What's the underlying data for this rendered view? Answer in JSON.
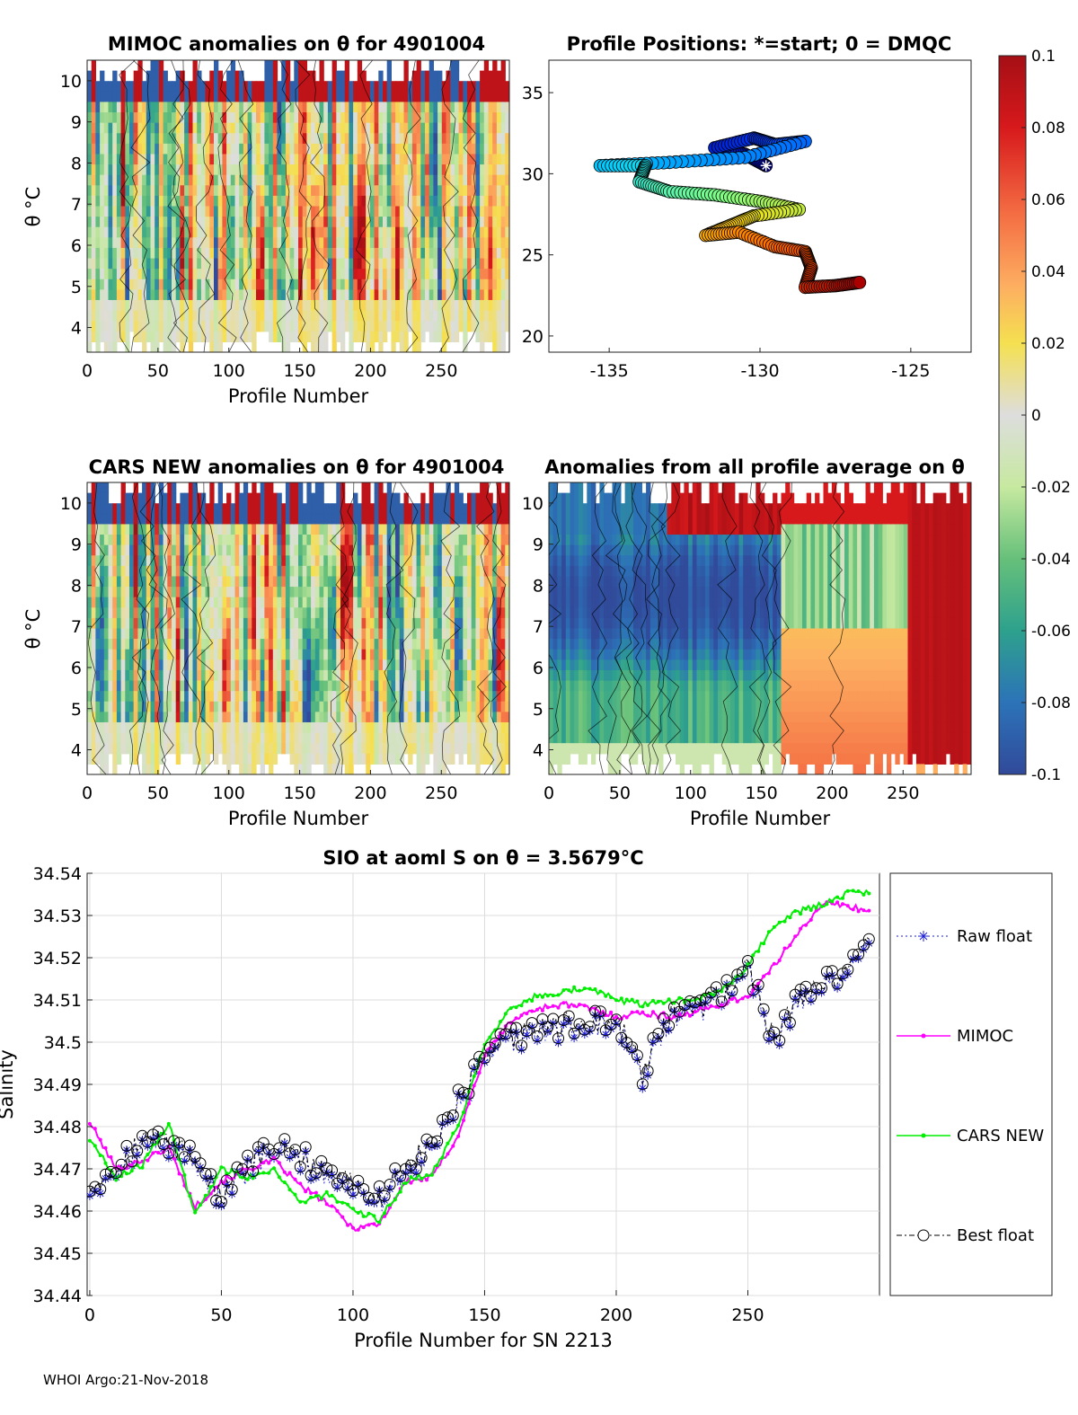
{
  "panels": {
    "mimoc": {
      "title": "MIMOC anomalies on θ  for 4901004",
      "ylabel": "θ °C",
      "xlabel": "Profile Number",
      "xticks": [
        0,
        50,
        100,
        150,
        200,
        250
      ],
      "yticks": [
        4,
        5,
        6,
        7,
        8,
        9,
        10
      ]
    },
    "positions": {
      "title": "Profile Positions: *=start; 0 = DMQC",
      "xticks": [
        -135,
        -130,
        -125
      ],
      "yticks": [
        20,
        25,
        30,
        35
      ]
    },
    "cars": {
      "title": "CARS NEW anomalies on θ for 4901004",
      "ylabel": "θ °C",
      "xlabel": "Profile Number",
      "xticks": [
        0,
        50,
        100,
        150,
        200,
        250
      ],
      "yticks": [
        4,
        5,
        6,
        7,
        8,
        9,
        10
      ]
    },
    "allavg": {
      "title": "Anomalies from all profile average on θ",
      "xlabel": "Profile Number",
      "xticks": [
        0,
        50,
        100,
        150,
        200,
        250
      ],
      "yticks": [
        4,
        5,
        6,
        7,
        8,
        9,
        10
      ]
    }
  },
  "colorbar": {
    "ticks": [
      "0.1",
      "0.08",
      "0.06",
      "0.04",
      "0.02",
      "0",
      "-0.02",
      "-0.04",
      "-0.06",
      "-0.08",
      "-0.1"
    ]
  },
  "salinity": {
    "title": "SIO at aoml S on θ = 3.5679°C",
    "xlabel": "Profile Number for SN 2213",
    "ylabel": "Salinity",
    "xticks": [
      0,
      50,
      100,
      150,
      200,
      250
    ],
    "yticks": [
      "34.44",
      "34.45",
      "34.46",
      "34.47",
      "34.48",
      "34.49",
      "34.5",
      "34.51",
      "34.52",
      "34.53",
      "34.54"
    ],
    "legend": [
      "Raw float",
      "MIMOC",
      "CARS NEW",
      "Best float"
    ]
  },
  "footer": "WHOI Argo:21-Nov-2018",
  "colors": {
    "raw": "#1f1fd0",
    "mimoc": "#ff00ff",
    "cars": "#00ee00",
    "best": "#000000"
  },
  "chart_data": [
    {
      "type": "heatmap",
      "title": "MIMOC anomalies on θ  for 4901004",
      "xlabel": "Profile Number",
      "ylabel": "θ °C",
      "xlim": [
        0,
        298
      ],
      "ylim": [
        3.4,
        10.5
      ],
      "clim": [
        -0.1,
        0.1
      ]
    },
    {
      "type": "scatter",
      "title": "Profile Positions: *=start; 0 = DMQC",
      "xlim": [
        -137,
        -123
      ],
      "ylim": [
        19,
        37
      ],
      "track": [
        [
          -129.8,
          30.5
        ],
        [
          -130.5,
          31.2
        ],
        [
          -131.5,
          31.6
        ],
        [
          -130.2,
          32.2
        ],
        [
          -129.5,
          31.8
        ],
        [
          -128.5,
          32.0
        ],
        [
          -130.5,
          31.0
        ],
        [
          -133.0,
          30.7
        ],
        [
          -135.3,
          30.5
        ],
        [
          -133.8,
          30.5
        ],
        [
          -134.0,
          29.5
        ],
        [
          -133.0,
          28.9
        ],
        [
          -131.5,
          28.7
        ],
        [
          -130.0,
          28.3
        ],
        [
          -128.7,
          27.8
        ],
        [
          -130.2,
          27.4
        ],
        [
          -131.0,
          26.8
        ],
        [
          -131.8,
          26.2
        ],
        [
          -130.7,
          26.4
        ],
        [
          -129.5,
          25.5
        ],
        [
          -128.5,
          25.2
        ],
        [
          -128.3,
          24.2
        ],
        [
          -128.5,
          23.0
        ],
        [
          -127.5,
          23.1
        ],
        [
          -126.7,
          23.3
        ]
      ]
    },
    {
      "type": "heatmap",
      "title": "CARS NEW anomalies on θ for 4901004",
      "xlabel": "Profile Number",
      "ylabel": "θ °C",
      "xlim": [
        0,
        298
      ],
      "ylim": [
        3.4,
        10.5
      ],
      "clim": [
        -0.1,
        0.1
      ]
    },
    {
      "type": "heatmap",
      "title": "Anomalies from all profile average on θ",
      "xlabel": "Profile Number",
      "xlim": [
        0,
        298
      ],
      "ylim": [
        3.4,
        10.5
      ],
      "clim": [
        -0.1,
        0.1
      ]
    },
    {
      "type": "line",
      "title": "SIO at aoml S on θ = 3.5679°C",
      "xlabel": "Profile Number for SN 2213",
      "ylabel": "Salinity",
      "xlim": [
        -1,
        300
      ],
      "ylim": [
        34.44,
        34.54
      ],
      "x": [
        0,
        10,
        20,
        30,
        40,
        50,
        60,
        70,
        80,
        90,
        100,
        110,
        120,
        130,
        140,
        150,
        160,
        170,
        180,
        190,
        200,
        210,
        220,
        230,
        240,
        250,
        260,
        270,
        280,
        290,
        296
      ],
      "series": [
        {
          "name": "Raw float",
          "values": [
            34.465,
            34.47,
            34.476,
            34.475,
            34.472,
            34.462,
            34.47,
            34.474,
            34.472,
            34.468,
            34.466,
            34.462,
            34.47,
            34.474,
            34.485,
            34.495,
            34.5,
            34.502,
            34.503,
            34.504,
            34.504,
            34.492,
            34.505,
            34.507,
            34.51,
            34.517,
            34.5,
            34.51,
            34.513,
            34.518,
            34.523
          ]
        },
        {
          "name": "MIMOC",
          "values": [
            34.481,
            34.47,
            34.472,
            34.475,
            34.461,
            34.467,
            34.47,
            34.472,
            34.466,
            34.462,
            34.456,
            34.457,
            34.467,
            34.468,
            34.478,
            34.497,
            34.505,
            34.508,
            34.509,
            34.508,
            34.506,
            34.507,
            34.506,
            34.507,
            34.509,
            34.511,
            34.518,
            34.527,
            34.533,
            34.532,
            34.531
          ]
        },
        {
          "name": "CARS NEW",
          "values": [
            34.477,
            34.468,
            34.471,
            34.481,
            34.459,
            34.47,
            34.468,
            34.47,
            34.462,
            34.464,
            34.46,
            34.458,
            34.467,
            34.469,
            34.48,
            34.5,
            34.508,
            34.511,
            34.512,
            34.513,
            34.51,
            34.509,
            34.51,
            34.51,
            34.512,
            34.518,
            34.528,
            34.531,
            34.533,
            34.536,
            34.535
          ]
        },
        {
          "name": "Best float",
          "values": [
            34.466,
            34.471,
            34.477,
            34.476,
            34.473,
            34.463,
            34.471,
            34.475,
            34.473,
            34.469,
            34.467,
            34.463,
            34.471,
            34.475,
            34.486,
            34.496,
            34.501,
            34.503,
            34.504,
            34.505,
            34.505,
            34.493,
            34.506,
            34.508,
            34.511,
            34.518,
            34.501,
            34.511,
            34.514,
            34.519,
            34.524
          ]
        }
      ]
    }
  ]
}
